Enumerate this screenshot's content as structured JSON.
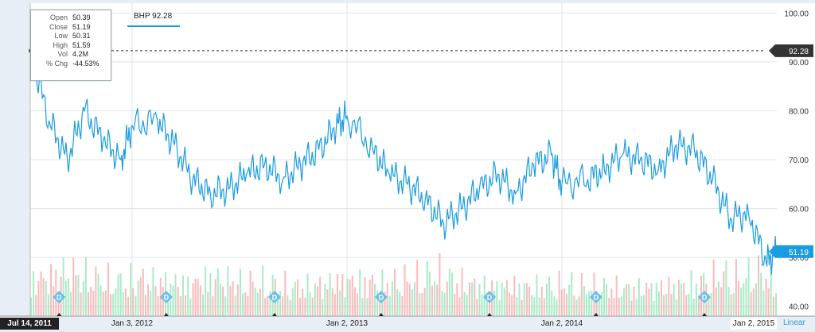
{
  "colors": {
    "line": "#1a9ce0",
    "grid": "#dfe3e8",
    "vol_up": "#8ee3b4",
    "vol_down": "#f4a6a6",
    "price_badge": "#333333",
    "last_badge": "#1a9ce0",
    "dividend_marker": "#6cbfe8"
  },
  "tooltip": {
    "rows": [
      {
        "key": "Open",
        "value": "50.39"
      },
      {
        "key": "Close",
        "value": "51.19"
      },
      {
        "key": "Low",
        "value": "50.31"
      },
      {
        "key": "High",
        "value": "51.59"
      },
      {
        "key": "Vol",
        "value": "4.2M"
      },
      {
        "key": "% Chg",
        "value": "-44.53%"
      }
    ]
  },
  "legend": {
    "label": "BHP 92.28"
  },
  "x_axis": {
    "start_badge": "Jul 14, 2011",
    "end_badge": "Jan 2, 2015",
    "scale_label": "Linear"
  },
  "chart_data": {
    "type": "line",
    "title": "",
    "series": [
      {
        "name": "BHP",
        "x": [
          "2011-07-14",
          "2011-08-15",
          "2011-09-15",
          "2011-10-14",
          "2011-11-15",
          "2011-12-15",
          "2012-01-03",
          "2012-02-15",
          "2012-03-15",
          "2012-04-15",
          "2012-05-15",
          "2012-06-15",
          "2012-07-15",
          "2012-08-15",
          "2012-09-15",
          "2012-10-15",
          "2012-11-15",
          "2012-12-15",
          "2013-01-02",
          "2013-02-15",
          "2013-03-15",
          "2013-04-15",
          "2013-05-15",
          "2013-06-15",
          "2013-07-15",
          "2013-08-15",
          "2013-09-15",
          "2013-10-15",
          "2013-11-15",
          "2013-12-15",
          "2014-01-02",
          "2014-02-15",
          "2014-03-15",
          "2014-04-15",
          "2014-05-15",
          "2014-06-15",
          "2014-07-15",
          "2014-08-15",
          "2014-09-15",
          "2014-10-15",
          "2014-11-15",
          "2014-12-15",
          "2015-01-02"
        ],
        "y": [
          92.28,
          78,
          70,
          80,
          74,
          70,
          77,
          78,
          73,
          66,
          63,
          64,
          67,
          69,
          66,
          69,
          72,
          77,
          79,
          72,
          67,
          65,
          62,
          57,
          60,
          64,
          67,
          63,
          69,
          71,
          65,
          66,
          68,
          71,
          70,
          68,
          73,
          72,
          66,
          58,
          59,
          49,
          51.19
        ]
      }
    ],
    "volume_millions": [
      4.8,
      5.2,
      6.0,
      5.5,
      4.9,
      4.6,
      5.0,
      4.7,
      4.5,
      4.3,
      5.1,
      4.9,
      4.4,
      4.6,
      4.2,
      4.0,
      4.1,
      4.5,
      4.8,
      4.6,
      4.4,
      4.9,
      5.3,
      5.8,
      4.7,
      4.2,
      4.0,
      4.1,
      3.9,
      4.0,
      4.3,
      4.1,
      4.0,
      3.8,
      3.7,
      3.9,
      4.0,
      4.2,
      4.8,
      5.6,
      5.2,
      6.0,
      4.2
    ],
    "dividend_dates": [
      "2011-09-01",
      "2012-03-01",
      "2012-09-01",
      "2013-03-01",
      "2013-09-01",
      "2014-03-01",
      "2014-09-01"
    ],
    "ylim": [
      38,
      102
    ],
    "yticks": [
      "40.00",
      "50.00",
      "60.00",
      "70.00",
      "80.00",
      "90.00",
      "100.00"
    ],
    "xticks": [
      "Jan 3, 2012",
      "Jan 2, 2013",
      "Jan 2, 2014"
    ],
    "reference_label": "92.28",
    "last_label": "51.19",
    "xlabel": "",
    "ylabel": "",
    "grid": true,
    "y_axis_side": "right"
  }
}
